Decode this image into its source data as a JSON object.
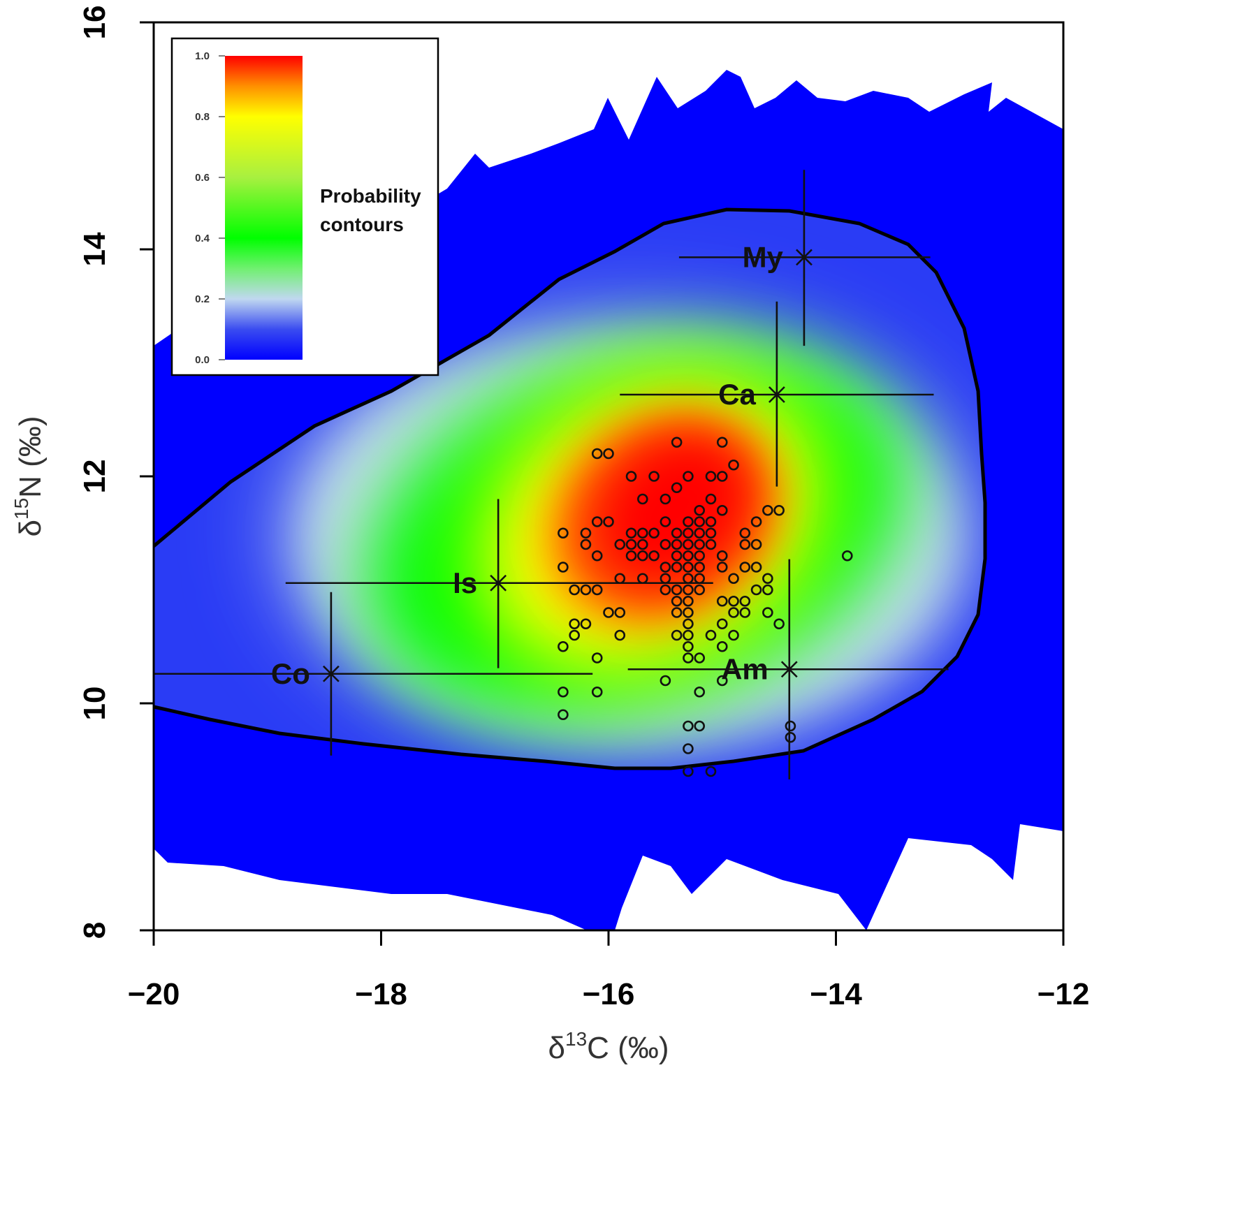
{
  "chart_data": {
    "type": "scatter",
    "title": "",
    "xlabel": "δ13C (‰)",
    "xlabel_parts": {
      "symbol": "δ",
      "sup": "13",
      "rest": "C (‰)"
    },
    "ylabel": "δ15N (‰)",
    "ylabel_parts": {
      "symbol": "δ",
      "sup": "15",
      "rest": "N (‰)"
    },
    "xlim": [
      -20,
      -12
    ],
    "ylim": [
      8,
      16
    ],
    "xticks": [
      -20,
      -18,
      -16,
      -14,
      -12
    ],
    "xtick_labels": [
      "−20",
      "−18",
      "−16",
      "−14",
      "−12"
    ],
    "yticks": [
      8,
      10,
      12,
      14,
      16
    ],
    "ytick_labels": [
      "8",
      "10",
      "12",
      "14",
      "16"
    ],
    "grid": false,
    "legend": {
      "placement": "top-left",
      "title_line1": "Probability",
      "title_line2": "contours",
      "scale_ticks": [
        "1.0",
        "0.8",
        "0.6",
        "0.4",
        "0.2",
        "0.0"
      ],
      "scale_values": [
        1.0,
        0.8,
        0.6,
        0.4,
        0.2,
        0.0
      ],
      "colors": {
        "1.0": "#ff0000",
        "0.8": "#ffff00",
        "0.4": "#00ff00",
        "0.2": "#c0d8f0",
        "0.0": "#0000ff"
      }
    },
    "sources": [
      {
        "label": "My",
        "x": -14.28,
        "y": 13.93,
        "x_range": [
          -15.38,
          -13.17
        ],
        "y_range": [
          13.15,
          14.7
        ]
      },
      {
        "label": "Ca",
        "x": -14.52,
        "y": 12.72,
        "x_range": [
          -15.9,
          -13.14
        ],
        "y_range": [
          11.91,
          13.54
        ]
      },
      {
        "label": "Is",
        "x": -16.97,
        "y": 11.06,
        "x_range": [
          -18.84,
          -15.08
        ],
        "y_range": [
          10.31,
          11.8
        ]
      },
      {
        "label": "Co",
        "x": -18.44,
        "y": 10.26,
        "x_range": [
          -20.0,
          -16.14
        ],
        "y_range": [
          9.54,
          10.98
        ]
      },
      {
        "label": "Am",
        "x": -14.41,
        "y": 10.3,
        "x_range": [
          -15.83,
          -13.01
        ],
        "y_range": [
          9.33,
          11.27
        ]
      }
    ],
    "points": [
      [
        -15.4,
        12.3
      ],
      [
        -15.0,
        12.3
      ],
      [
        -16.1,
        12.2
      ],
      [
        -16.0,
        12.2
      ],
      [
        -14.9,
        12.1
      ],
      [
        -15.8,
        12.0
      ],
      [
        -15.6,
        12.0
      ],
      [
        -15.3,
        12.0
      ],
      [
        -15.1,
        12.0
      ],
      [
        -15.0,
        12.0
      ],
      [
        -15.4,
        11.9
      ],
      [
        -15.7,
        11.8
      ],
      [
        -15.5,
        11.8
      ],
      [
        -15.1,
        11.8
      ],
      [
        -15.2,
        11.7
      ],
      [
        -15.0,
        11.7
      ],
      [
        -14.6,
        11.7
      ],
      [
        -14.5,
        11.7
      ],
      [
        -16.1,
        11.6
      ],
      [
        -16.0,
        11.6
      ],
      [
        -15.5,
        11.6
      ],
      [
        -15.3,
        11.6
      ],
      [
        -15.2,
        11.6
      ],
      [
        -15.1,
        11.6
      ],
      [
        -14.7,
        11.6
      ],
      [
        -16.4,
        11.5
      ],
      [
        -16.2,
        11.5
      ],
      [
        -15.8,
        11.5
      ],
      [
        -15.7,
        11.5
      ],
      [
        -15.6,
        11.5
      ],
      [
        -15.4,
        11.5
      ],
      [
        -15.3,
        11.5
      ],
      [
        -15.2,
        11.5
      ],
      [
        -15.1,
        11.5
      ],
      [
        -14.8,
        11.5
      ],
      [
        -16.2,
        11.4
      ],
      [
        -15.9,
        11.4
      ],
      [
        -15.8,
        11.4
      ],
      [
        -15.7,
        11.4
      ],
      [
        -15.5,
        11.4
      ],
      [
        -15.4,
        11.4
      ],
      [
        -15.3,
        11.4
      ],
      [
        -15.2,
        11.4
      ],
      [
        -15.1,
        11.4
      ],
      [
        -14.8,
        11.4
      ],
      [
        -14.7,
        11.4
      ],
      [
        -16.1,
        11.3
      ],
      [
        -15.8,
        11.3
      ],
      [
        -15.7,
        11.3
      ],
      [
        -15.6,
        11.3
      ],
      [
        -15.4,
        11.3
      ],
      [
        -15.3,
        11.3
      ],
      [
        -15.2,
        11.3
      ],
      [
        -15.0,
        11.3
      ],
      [
        -13.9,
        11.3
      ],
      [
        -16.4,
        11.2
      ],
      [
        -15.5,
        11.2
      ],
      [
        -15.4,
        11.2
      ],
      [
        -15.3,
        11.2
      ],
      [
        -15.2,
        11.2
      ],
      [
        -15.0,
        11.2
      ],
      [
        -14.8,
        11.2
      ],
      [
        -14.7,
        11.2
      ],
      [
        -15.9,
        11.1
      ],
      [
        -15.7,
        11.1
      ],
      [
        -15.5,
        11.1
      ],
      [
        -15.3,
        11.1
      ],
      [
        -15.2,
        11.1
      ],
      [
        -14.9,
        11.1
      ],
      [
        -14.6,
        11.1
      ],
      [
        -16.3,
        11.0
      ],
      [
        -16.2,
        11.0
      ],
      [
        -16.1,
        11.0
      ],
      [
        -15.5,
        11.0
      ],
      [
        -15.4,
        11.0
      ],
      [
        -15.3,
        11.0
      ],
      [
        -15.2,
        11.0
      ],
      [
        -14.7,
        11.0
      ],
      [
        -14.6,
        11.0
      ],
      [
        -15.4,
        10.9
      ],
      [
        -15.3,
        10.9
      ],
      [
        -15.0,
        10.9
      ],
      [
        -14.9,
        10.9
      ],
      [
        -14.8,
        10.9
      ],
      [
        -16.0,
        10.8
      ],
      [
        -15.9,
        10.8
      ],
      [
        -15.4,
        10.8
      ],
      [
        -15.3,
        10.8
      ],
      [
        -14.9,
        10.8
      ],
      [
        -14.8,
        10.8
      ],
      [
        -14.6,
        10.8
      ],
      [
        -16.3,
        10.7
      ],
      [
        -16.2,
        10.7
      ],
      [
        -15.3,
        10.7
      ],
      [
        -15.0,
        10.7
      ],
      [
        -14.5,
        10.7
      ],
      [
        -16.3,
        10.6
      ],
      [
        -15.9,
        10.6
      ],
      [
        -15.4,
        10.6
      ],
      [
        -15.3,
        10.6
      ],
      [
        -15.1,
        10.6
      ],
      [
        -14.9,
        10.6
      ],
      [
        -16.4,
        10.5
      ],
      [
        -15.3,
        10.5
      ],
      [
        -15.0,
        10.5
      ],
      [
        -16.1,
        10.4
      ],
      [
        -15.3,
        10.4
      ],
      [
        -15.2,
        10.4
      ],
      [
        -15.5,
        10.2
      ],
      [
        -15.0,
        10.2
      ],
      [
        -16.4,
        10.1
      ],
      [
        -16.1,
        10.1
      ],
      [
        -15.2,
        10.1
      ],
      [
        -16.4,
        9.9
      ],
      [
        -15.3,
        9.8
      ],
      [
        -15.2,
        9.8
      ],
      [
        -14.4,
        9.8
      ],
      [
        -14.4,
        9.7
      ],
      [
        -15.3,
        9.6
      ],
      [
        -15.3,
        9.4
      ],
      [
        -15.1,
        9.4
      ]
    ]
  }
}
